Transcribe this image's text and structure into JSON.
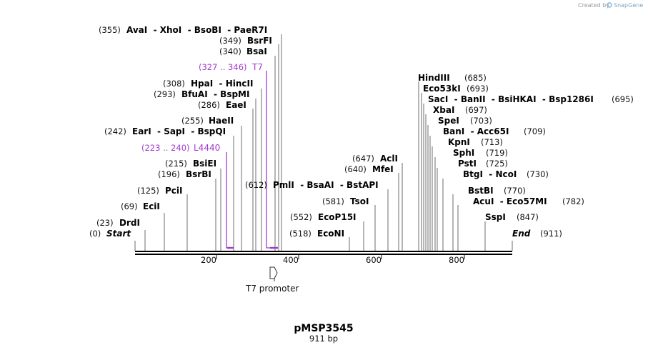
{
  "credit": {
    "prefix": "Created by",
    "brand": "SnapGene"
  },
  "plasmid": {
    "name": "pMSP3545",
    "length": "911 bp"
  },
  "axis": {
    "ticks": [
      "200",
      "400",
      "600",
      "800"
    ]
  },
  "boundary": {
    "start": {
      "pos": "(0)",
      "label": "Start"
    },
    "end": {
      "pos": "(911)",
      "label": "End"
    }
  },
  "sites": [
    {
      "pos": "(355)",
      "label": "AvaI  - XhoI  - BsoBI  - PaeR7I"
    },
    {
      "pos": "(349)",
      "label": "BsrFI"
    },
    {
      "pos": "(340)",
      "label": "BsaI"
    },
    {
      "pos": "(308)",
      "label": "HpaI  - HincII"
    },
    {
      "pos": "(293)",
      "label": "BfuAI  - BspMI"
    },
    {
      "pos": "(286)",
      "label": "EaeI"
    },
    {
      "pos": "(255)",
      "label": "HaeII"
    },
    {
      "pos": "(242)",
      "label": "EarI  - SapI  - BspQI"
    },
    {
      "pos": "(215)",
      "label": "BsiEI"
    },
    {
      "pos": "(196)",
      "label": "BsrBI"
    },
    {
      "pos": "(125)",
      "label": "PciI"
    },
    {
      "pos": "(69)",
      "label": "EciI"
    },
    {
      "pos": "(23)",
      "label": "DrdI"
    },
    {
      "pos": "(612)",
      "label": "PmlI  - BsaAI  - BstAPI"
    },
    {
      "pos": "(647)",
      "label": "AclI"
    },
    {
      "pos": "(640)",
      "label": "MfeI"
    },
    {
      "pos": "(581)",
      "label": "TsoI"
    },
    {
      "pos": "(552)",
      "label": "EcoP15I"
    },
    {
      "pos": "(518)",
      "label": "EcoNI"
    },
    {
      "pos": "(685)",
      "label": "HindIII"
    },
    {
      "pos": "(693)",
      "label": "Eco53kI"
    },
    {
      "pos": "(695)",
      "label": "SacI  - BanII  - BsiHKAI  - Bsp1286I"
    },
    {
      "pos": "(697)",
      "label": "XbaI"
    },
    {
      "pos": "(703)",
      "label": "SpeI"
    },
    {
      "pos": "(709)",
      "label": "BanI  - Acc65I"
    },
    {
      "pos": "(713)",
      "label": "KpnI"
    },
    {
      "pos": "(719)",
      "label": "SphI"
    },
    {
      "pos": "(725)",
      "label": "PstI"
    },
    {
      "pos": "(730)",
      "label": "BtgI  - NcoI"
    },
    {
      "pos": "(770)",
      "label": "BstBI"
    },
    {
      "pos": "(782)",
      "label": "AcuI  - Eco57MI"
    },
    {
      "pos": "(847)",
      "label": "SspI"
    }
  ],
  "features": [
    {
      "range": "(327 .. 346)",
      "name": "T7",
      "color": "#a23ad0"
    },
    {
      "range": "(223 .. 240)",
      "name": "L4440",
      "color": "#a23ad0"
    }
  ],
  "promoter": {
    "name": "T7 promoter"
  }
}
